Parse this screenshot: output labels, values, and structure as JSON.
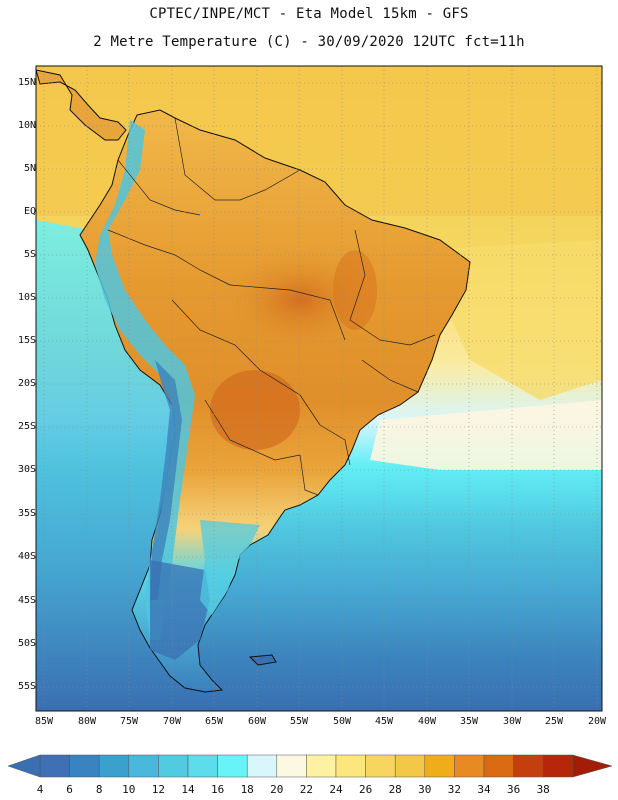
{
  "header": {
    "line1": "CPTEC/INPE/MCT -  Eta Model 15km - GFS",
    "line2": "2 Metre Temperature (C) - 30/09/2020 12UTC fct=11h"
  },
  "map": {
    "lat_labels": [
      "15N",
      "10N",
      "5N",
      "EQ",
      "5S",
      "10S",
      "15S",
      "20S",
      "25S",
      "30S",
      "35S",
      "40S",
      "45S",
      "50S",
      "55S"
    ],
    "lon_labels": [
      "85W",
      "80W",
      "75W",
      "70W",
      "65W",
      "60W",
      "55W",
      "50W",
      "45W",
      "40W",
      "35W",
      "30W",
      "25W",
      "20W"
    ],
    "colors": {
      "ocean_warm": "#f4cc52",
      "ocean_mid": "#f7e170",
      "land_hot": "#e39a2e",
      "land_hotter": "#d5721b",
      "ocean_cool": "#5fe4ea",
      "ocean_cold": "#3b86bd"
    }
  },
  "colorbar": {
    "labels": [
      "4",
      "6",
      "8",
      "10",
      "12",
      "14",
      "16",
      "18",
      "20",
      "22",
      "24",
      "26",
      "28",
      "30",
      "32",
      "34",
      "36",
      "38"
    ],
    "colors": [
      "#3f6fb4",
      "#3984c0",
      "#3aa1cf",
      "#49b8dc",
      "#52cbe2",
      "#5ddcec",
      "#68f3f8",
      "#d8f6fc",
      "#fdf8e2",
      "#fdf2a2",
      "#fde67d",
      "#f8d55f",
      "#f3c748",
      "#f0ad1a",
      "#e88a22",
      "#db6a14",
      "#c33f0e",
      "#b5260a"
    ]
  }
}
